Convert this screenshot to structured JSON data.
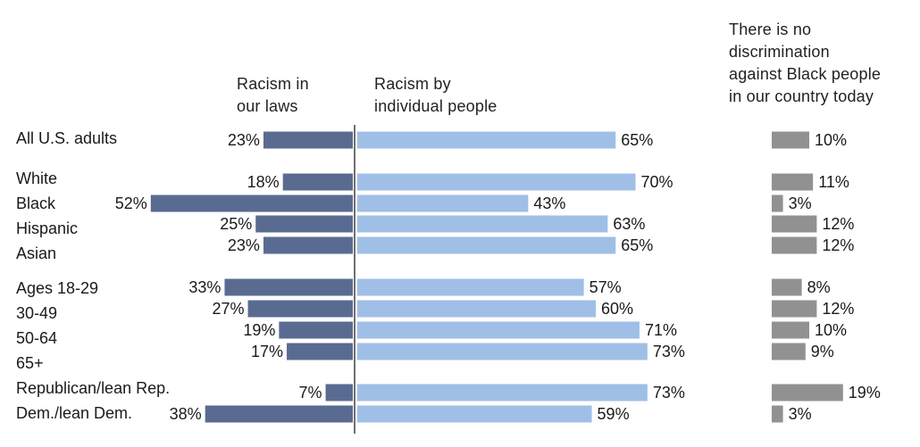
{
  "headers": {
    "laws_line1": "Racism in",
    "laws_line2": "our laws",
    "individual_line1": "Racism by",
    "individual_line2": "individual people",
    "nodisc_line1": "There is no",
    "nodisc_line2": "discrimination",
    "nodisc_line3": "against Black people",
    "nodisc_line4": "in our country today"
  },
  "colors": {
    "laws": "#5a6b92",
    "individual": "#9fbfe6",
    "no_discrimination": "#919191",
    "axis": "#333333"
  },
  "chart_data": {
    "type": "bar",
    "categories": [
      "All U.S. adults",
      "White",
      "Black",
      "Hispanic",
      "Asian",
      "Ages 18-29",
      "30-49",
      "50-64",
      "65+",
      "Republican/lean Rep.",
      "Dem./lean Dem."
    ],
    "series": [
      {
        "name": "Racism in our laws",
        "values": [
          23,
          18,
          52,
          25,
          23,
          33,
          27,
          19,
          17,
          7,
          38
        ]
      },
      {
        "name": "Racism by individual people",
        "values": [
          65,
          70,
          43,
          63,
          65,
          57,
          60,
          71,
          73,
          73,
          59
        ]
      },
      {
        "name": "There is no discrimination against Black people in our country today",
        "values": [
          10,
          11,
          3,
          12,
          12,
          8,
          12,
          10,
          9,
          19,
          3
        ]
      }
    ],
    "value_suffix": "%",
    "grid": false
  }
}
